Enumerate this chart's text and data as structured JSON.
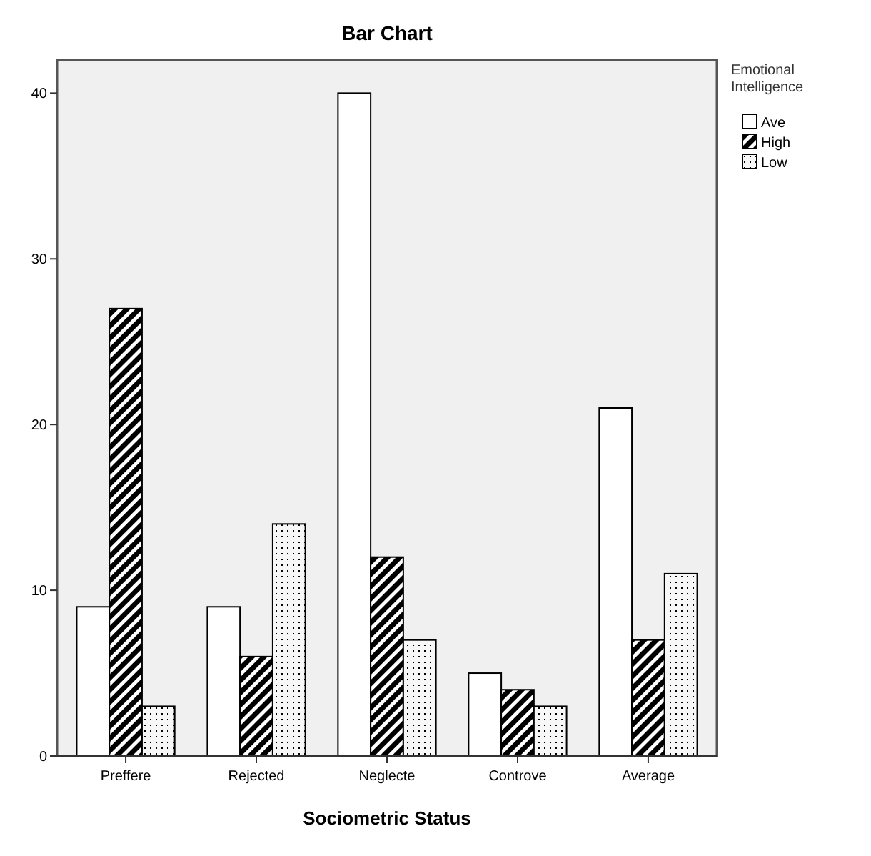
{
  "chart_data": {
    "type": "bar",
    "title": "Bar Chart",
    "xlabel": "Sociometric Status",
    "legend_title": "Emotional Intelligence",
    "categories": [
      "Preffere",
      "Rejected",
      "Neglecte",
      "Controve",
      "Average"
    ],
    "series": [
      {
        "name": "Ave",
        "color": "#ffffff",
        "values": [
          9,
          9,
          40,
          5,
          21
        ]
      },
      {
        "name": "High",
        "color": "#000000",
        "values": [
          27,
          6,
          12,
          4,
          7
        ]
      },
      {
        "name": "Low",
        "color": "#000000",
        "values": [
          3,
          14,
          7,
          3,
          11
        ]
      }
    ],
    "ylim": [
      0,
      42
    ],
    "yticks": [
      0,
      10,
      20,
      30,
      40
    ],
    "grid": false,
    "legend": "right"
  }
}
